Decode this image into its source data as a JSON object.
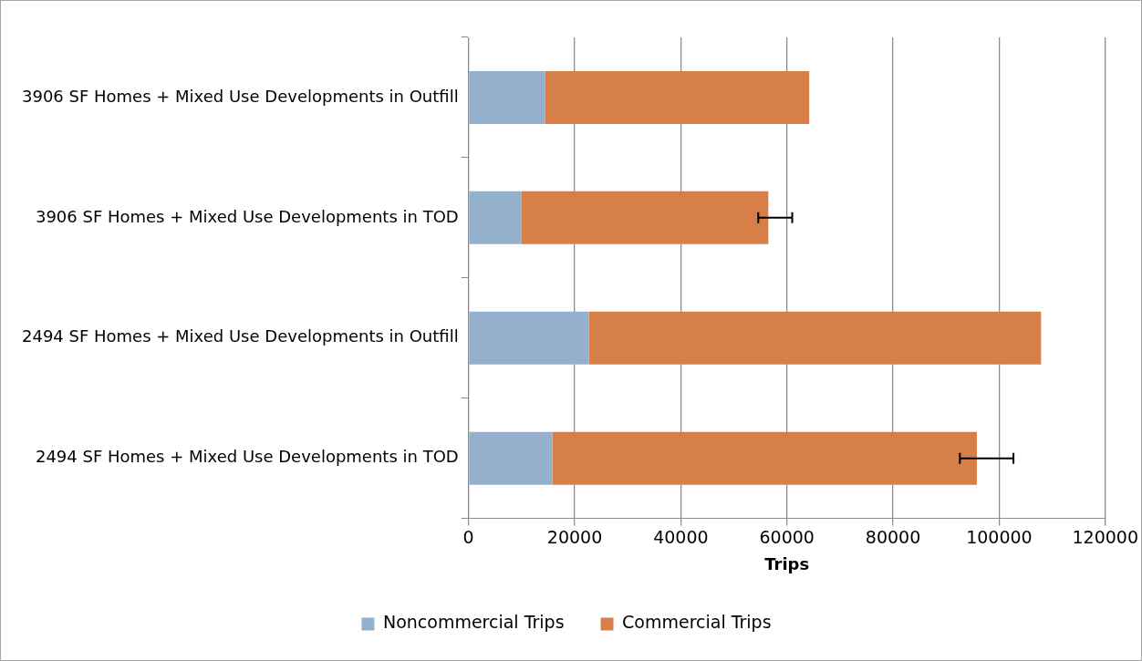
{
  "chart_data": {
    "type": "bar",
    "orientation": "horizontal",
    "stacked": true,
    "categories": [
      "3906 SF Homes + Mixed Use Developments in Outfill",
      "3906 SF Homes + Mixed Use Developments in TOD",
      "2494 SF Homes + Mixed Use Developments in Outfill",
      "2494 SF Homes + Mixed Use Developments in TOD"
    ],
    "series": [
      {
        "name": "Noncommercial Trips",
        "color": "#93b1cd",
        "values": [
          14400,
          10000,
          22700,
          15800
        ]
      },
      {
        "name": "Commercial Trips",
        "color": "#d77f48",
        "values": [
          49800,
          46500,
          85200,
          80000
        ],
        "errors": [
          null,
          [
            54600,
            61000
          ],
          null,
          [
            92600,
            102700
          ]
        ]
      }
    ],
    "xlabel": "Trips",
    "xlim": [
      0,
      120000
    ],
    "xticks": [
      0,
      20000,
      40000,
      60000,
      80000,
      100000,
      120000
    ],
    "grid": "x",
    "legend": "bottom"
  }
}
